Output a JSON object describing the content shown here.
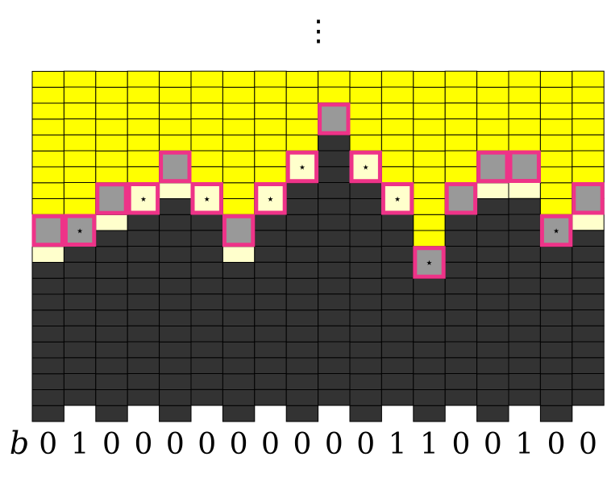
{
  "colors": {
    "yellow": "#ffff00",
    "pale": "#ffffcc",
    "dark": "#333333",
    "gray": "#999999",
    "highlight": "#ee3388",
    "line": "#000000"
  },
  "diagram": {
    "ellipsis": "⋮",
    "row_label": "b",
    "star_symbol": "⋆",
    "columns": [
      {
        "bit": "0",
        "odd": false,
        "dark": 10,
        "pale": 2,
        "hl": 13,
        "hl_fill": "gray",
        "star": false
      },
      {
        "bit": "1",
        "odd": true,
        "dark": 11,
        "pale": 0,
        "hl": 12,
        "hl_fill": "gray",
        "star": true
      },
      {
        "bit": "0",
        "odd": false,
        "dark": 12,
        "pale": 2,
        "hl": 15,
        "hl_fill": "gray",
        "star": false
      },
      {
        "bit": "0",
        "odd": true,
        "dark": 13,
        "pale": 1,
        "hl": 14,
        "hl_fill": "pale",
        "star": true
      },
      {
        "bit": "0",
        "odd": false,
        "dark": 14,
        "pale": 2,
        "hl": 17,
        "hl_fill": "gray",
        "star": false
      },
      {
        "bit": "0",
        "odd": true,
        "dark": 13,
        "pale": 1,
        "hl": 14,
        "hl_fill": "pale",
        "star": true
      },
      {
        "bit": "0",
        "odd": false,
        "dark": 10,
        "pale": 2,
        "hl": 13,
        "hl_fill": "gray",
        "star": false
      },
      {
        "bit": "0",
        "odd": true,
        "dark": 13,
        "pale": 1,
        "hl": 14,
        "hl_fill": "pale",
        "star": true
      },
      {
        "bit": "0",
        "odd": false,
        "dark": 16,
        "pale": 1,
        "hl": 17,
        "hl_fill": "pale",
        "star": true
      },
      {
        "bit": "0",
        "odd": true,
        "dark": 17,
        "pale": 1,
        "hl": 19,
        "hl_fill": "gray",
        "star": false
      },
      {
        "bit": "0",
        "odd": false,
        "dark": 16,
        "pale": 1,
        "hl": 17,
        "hl_fill": "pale",
        "star": true
      },
      {
        "bit": "1",
        "odd": true,
        "dark": 13,
        "pale": 1,
        "hl": 14,
        "hl_fill": "pale",
        "star": true
      },
      {
        "bit": "1",
        "odd": false,
        "dark": 10,
        "pale": 0,
        "hl": 11,
        "hl_fill": "gray",
        "star": true
      },
      {
        "bit": "0",
        "odd": true,
        "dark": 13,
        "pale": 1,
        "hl": 14,
        "hl_fill": "gray",
        "star": false
      },
      {
        "bit": "0",
        "odd": false,
        "dark": 14,
        "pale": 2,
        "hl": 17,
        "hl_fill": "gray",
        "star": false
      },
      {
        "bit": "1",
        "odd": true,
        "dark": 13,
        "pale": 1,
        "hl": 16,
        "hl_fill": "gray",
        "star": false
      },
      {
        "bit": "0",
        "odd": false,
        "dark": 12,
        "pale": 1,
        "hl": 13,
        "hl_fill": "gray",
        "star": true
      },
      {
        "bit": "0",
        "odd": true,
        "dark": 11,
        "pale": 1,
        "hl": 14,
        "hl_fill": "gray",
        "star": false
      }
    ]
  }
}
